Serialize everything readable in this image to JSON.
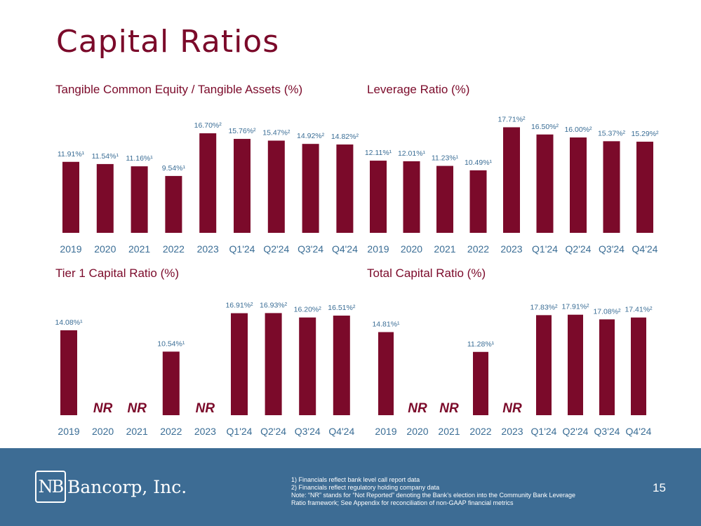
{
  "slide": {
    "title": "Capital Ratios",
    "page_number": "15"
  },
  "colors": {
    "bar": "#7b0a2a",
    "label": "#3a6d95",
    "footer": "#3d6c94"
  },
  "chart_data": [
    {
      "type": "bar",
      "title": "Tangible Common Equity / Tangible Assets (%)",
      "categories": [
        "2019",
        "2020",
        "2021",
        "2022",
        "2023",
        "Q1'24",
        "Q2'24",
        "Q3'24",
        "Q4'24"
      ],
      "values": [
        11.91,
        11.54,
        11.16,
        9.54,
        16.7,
        15.76,
        15.47,
        14.92,
        14.82
      ],
      "data_labels": [
        "11.91%¹",
        "11.54%¹",
        "11.16%¹",
        "9.54%¹",
        "16.70%²",
        "15.76%²",
        "15.47%²",
        "14.92%²",
        "14.82%²"
      ],
      "ylim": [
        0,
        20
      ],
      "grid": false
    },
    {
      "type": "bar",
      "title": "Leverage Ratio (%)",
      "categories": [
        "2019",
        "2020",
        "2021",
        "2022",
        "2023",
        "Q1'24",
        "Q2'24",
        "Q3'24",
        "Q4'24"
      ],
      "values": [
        12.11,
        12.01,
        11.23,
        10.49,
        17.71,
        16.5,
        16.0,
        15.37,
        15.29
      ],
      "data_labels": [
        "12.11%¹",
        "12.01%¹",
        "11.23%¹",
        "10.49%¹",
        "17.71%²",
        "16.50%²",
        "16.00%²",
        "15.37%²",
        "15.29%²"
      ],
      "ylim": [
        0,
        20
      ],
      "grid": false
    },
    {
      "type": "bar",
      "title": "Tier 1 Capital Ratio (%)",
      "categories": [
        "2019",
        "2020",
        "2021",
        "2022",
        "2023",
        "Q1'24",
        "Q2'24",
        "Q3'24",
        "Q4'24"
      ],
      "values": [
        14.08,
        null,
        null,
        10.54,
        null,
        16.91,
        16.93,
        16.2,
        16.51
      ],
      "data_labels": [
        "14.08%¹",
        "NR",
        "NR",
        "10.54%¹",
        "NR",
        "16.91%²",
        "16.93%²",
        "16.20%²",
        "16.51%²"
      ],
      "ylim": [
        0,
        20
      ],
      "grid": false
    },
    {
      "type": "bar",
      "title": "Total Capital Ratio (%)",
      "categories": [
        "2019",
        "2020",
        "2021",
        "2022",
        "2023",
        "Q1'24",
        "Q2'24",
        "Q3'24",
        "Q4'24"
      ],
      "values": [
        14.81,
        null,
        null,
        11.28,
        null,
        17.83,
        17.91,
        17.08,
        17.41
      ],
      "data_labels": [
        "14.81%¹",
        "NR",
        "NR",
        "11.28%¹",
        "NR",
        "17.83%²",
        "17.91%²",
        "17.08%²",
        "17.41%²"
      ],
      "ylim": [
        0,
        20
      ],
      "grid": false
    }
  ],
  "footer": {
    "logo_mark": "NB",
    "logo_text": "Bancorp, Inc.",
    "notes": [
      "1)     Financials reflect bank level call report data",
      "2)     Financials reflect regulatory holding company data",
      "Note: “NR” stands for “Not Reported” denoting the Bank’s election into the Community Bank Leverage Ratio framework; See Appendix for reconciliation of non-GAAP financial metrics"
    ]
  }
}
